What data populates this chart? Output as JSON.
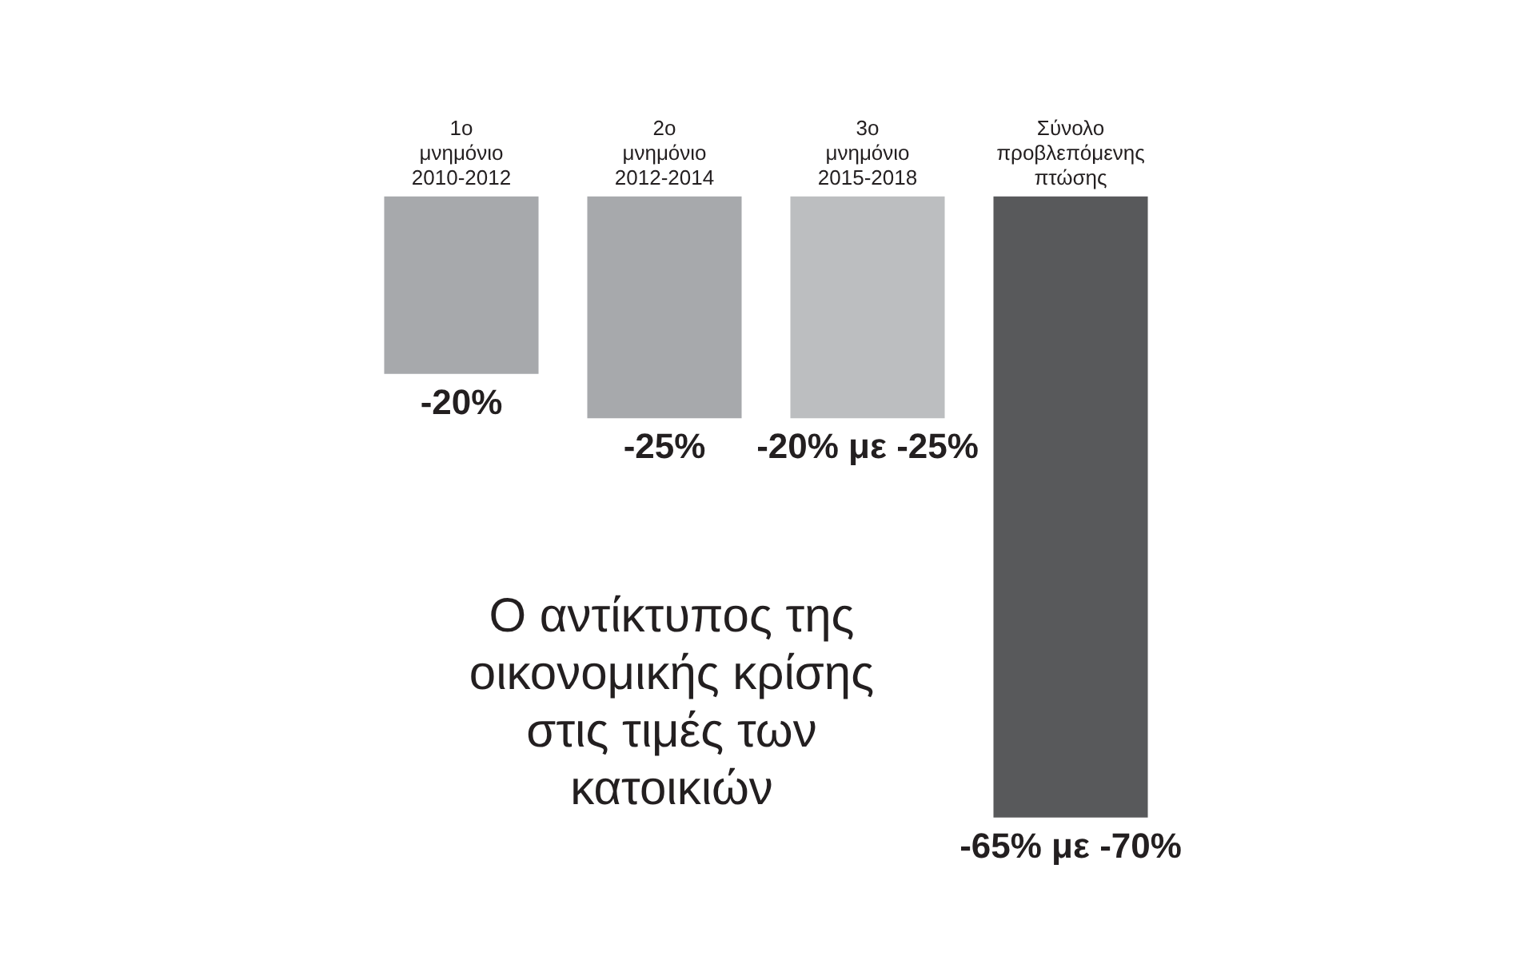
{
  "chart_data": {
    "type": "bar",
    "title": "Ο αντίκτυπος της οικονομικής κρίσης στις τιμές των κατοικιών",
    "categories": [
      "1ο\nμνημόνιο\n2010-2012",
      "2ο\nμνημόνιο\n2012-2014",
      "3ο\nμνημόνιο\n2015-2018",
      "Σύνολο\nπροβλεπόμενης\nπτώσης"
    ],
    "values": [
      -20,
      -25,
      -25,
      -70
    ],
    "colors": [
      "#a7a9ac",
      "#a7a9ac",
      "#bcbec0",
      "#58595b"
    ],
    "value_labels": [
      "-20%",
      "-25%",
      "-20% με -25%",
      "-65% με -70%"
    ],
    "tick_labels": "x",
    "grid": false,
    "legend": false
  }
}
